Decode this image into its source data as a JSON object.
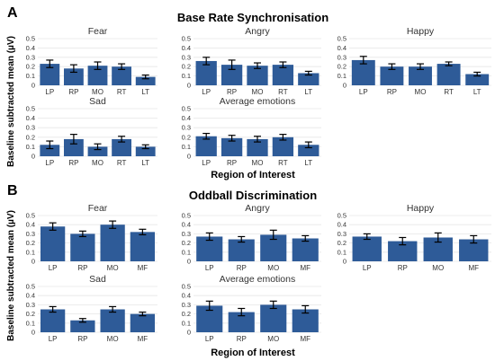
{
  "figure": {
    "y_axis_label": "Baseline subtracted mean (µV)",
    "x_axis_label": "Region of Interest",
    "colors": {
      "bar": "#2E5B98",
      "grid": "#E6E6E6",
      "error": "#000000",
      "text": "#333333"
    }
  },
  "chart_data": [
    {
      "panel": "A",
      "title": "Base Rate Synchronisation",
      "type": "bar",
      "categories": [
        "LP",
        "RP",
        "MO",
        "RT",
        "LT"
      ],
      "yticks": [
        0,
        0.1,
        0.2,
        0.3,
        0.4,
        0.5
      ],
      "ylim": [
        0,
        0.5
      ],
      "grid": true,
      "facets": [
        {
          "title": "Fear",
          "values": [
            0.23,
            0.18,
            0.21,
            0.2,
            0.09
          ],
          "errors": [
            0.04,
            0.04,
            0.04,
            0.03,
            0.02
          ]
        },
        {
          "title": "Angry",
          "values": [
            0.26,
            0.22,
            0.21,
            0.22,
            0.13
          ],
          "errors": [
            0.04,
            0.05,
            0.03,
            0.03,
            0.02
          ]
        },
        {
          "title": "Happy",
          "values": [
            0.27,
            0.2,
            0.2,
            0.23,
            0.12
          ],
          "errors": [
            0.04,
            0.03,
            0.03,
            0.02,
            0.02
          ]
        },
        {
          "title": "Sad",
          "values": [
            0.12,
            0.18,
            0.1,
            0.18,
            0.1
          ],
          "errors": [
            0.04,
            0.05,
            0.03,
            0.03,
            0.02
          ]
        },
        {
          "title": "Average emotions",
          "values": [
            0.21,
            0.19,
            0.18,
            0.2,
            0.12
          ],
          "errors": [
            0.03,
            0.03,
            0.03,
            0.03,
            0.03
          ]
        }
      ]
    },
    {
      "panel": "B",
      "title": "Oddball Discrimination",
      "type": "bar",
      "categories": [
        "LP",
        "RP",
        "MO",
        "MF"
      ],
      "yticks": [
        0,
        0.1,
        0.2,
        0.3,
        0.4,
        0.5
      ],
      "ylim": [
        0,
        0.5
      ],
      "grid": true,
      "facets": [
        {
          "title": "Fear",
          "values": [
            0.38,
            0.3,
            0.4,
            0.32
          ],
          "errors": [
            0.04,
            0.03,
            0.04,
            0.03
          ]
        },
        {
          "title": "Angry",
          "values": [
            0.27,
            0.24,
            0.29,
            0.25
          ],
          "errors": [
            0.04,
            0.03,
            0.05,
            0.03
          ]
        },
        {
          "title": "Happy",
          "values": [
            0.27,
            0.22,
            0.26,
            0.24
          ],
          "errors": [
            0.03,
            0.04,
            0.05,
            0.04
          ]
        },
        {
          "title": "Sad",
          "values": [
            0.25,
            0.13,
            0.25,
            0.2
          ],
          "errors": [
            0.03,
            0.02,
            0.03,
            0.02
          ]
        },
        {
          "title": "Average emotions",
          "values": [
            0.29,
            0.22,
            0.3,
            0.25
          ],
          "errors": [
            0.05,
            0.04,
            0.04,
            0.04
          ]
        }
      ]
    }
  ]
}
